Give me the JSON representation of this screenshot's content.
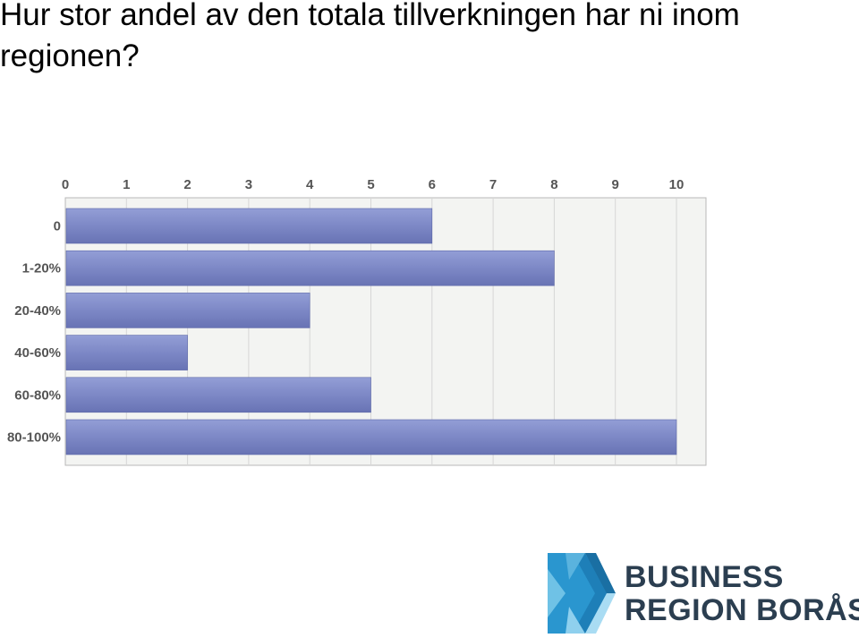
{
  "slide": {
    "title": "Hur stor andel av den totala tillverkningen har ni inom regionen?"
  },
  "chart_data": {
    "type": "bar",
    "orientation": "horizontal",
    "categories": [
      "0",
      "1-20%",
      "20-40%",
      "40-60%",
      "60-80%",
      "80-100%"
    ],
    "values": [
      6,
      8,
      4,
      2,
      5,
      10
    ],
    "x_ticks": [
      "0",
      "1",
      "2",
      "3",
      "4",
      "5",
      "6",
      "7",
      "8",
      "9",
      "10"
    ],
    "xlim": [
      0,
      10.5
    ],
    "grid": true,
    "bar_color": "#7b86c4"
  },
  "logo": {
    "line1": "BUSINESS",
    "line2": "REGION BORÅS"
  }
}
